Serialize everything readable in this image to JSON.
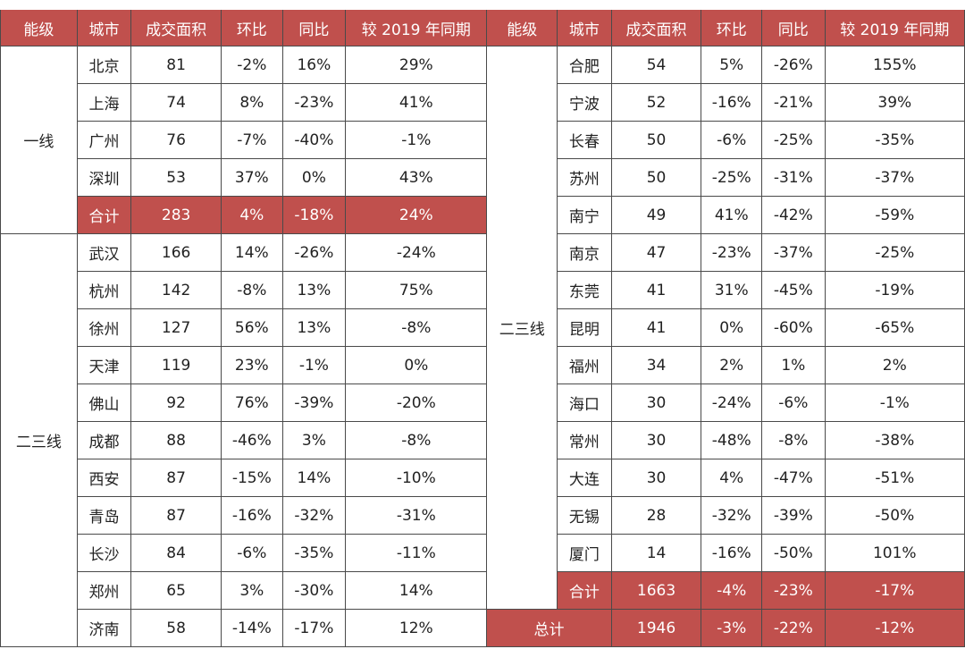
{
  "headers": [
    "能级",
    "城市",
    "成交面积",
    "环比",
    "同比",
    "较 2019 年同期",
    "能级",
    "城市",
    "成交面积",
    "环比",
    "同比",
    "较 2019 年同期"
  ],
  "left": {
    "groups": [
      {
        "tier": "一线",
        "rows": [
          {
            "city": "北京",
            "area": "81",
            "mom": "-2%",
            "yoy": "16%",
            "vs2019": "29%"
          },
          {
            "city": "上海",
            "area": "74",
            "mom": "8%",
            "yoy": "-23%",
            "vs2019": "41%"
          },
          {
            "city": "广州",
            "area": "76",
            "mom": "-7%",
            "yoy": "-40%",
            "vs2019": "-1%"
          },
          {
            "city": "深圳",
            "area": "53",
            "mom": "37%",
            "yoy": "0%",
            "vs2019": "43%"
          },
          {
            "city": "合计",
            "area": "283",
            "mom": "4%",
            "yoy": "-18%",
            "vs2019": "24%"
          }
        ]
      },
      {
        "tier": "二三线",
        "rows": [
          {
            "city": "武汉",
            "area": "166",
            "mom": "14%",
            "yoy": "-26%",
            "vs2019": "-24%"
          },
          {
            "city": "杭州",
            "area": "142",
            "mom": "-8%",
            "yoy": "13%",
            "vs2019": "75%"
          },
          {
            "city": "徐州",
            "area": "127",
            "mom": "56%",
            "yoy": "13%",
            "vs2019": "-8%"
          },
          {
            "city": "天津",
            "area": "119",
            "mom": "23%",
            "yoy": "-1%",
            "vs2019": "0%"
          },
          {
            "city": "佛山",
            "area": "92",
            "mom": "76%",
            "yoy": "-39%",
            "vs2019": "-20%"
          },
          {
            "city": "成都",
            "area": "88",
            "mom": "-46%",
            "yoy": "3%",
            "vs2019": "-8%"
          },
          {
            "city": "西安",
            "area": "87",
            "mom": "-15%",
            "yoy": "14%",
            "vs2019": "-10%"
          },
          {
            "city": "青岛",
            "area": "87",
            "mom": "-16%",
            "yoy": "-32%",
            "vs2019": "-31%"
          },
          {
            "city": "长沙",
            "area": "84",
            "mom": "-6%",
            "yoy": "-35%",
            "vs2019": "-11%"
          },
          {
            "city": "郑州",
            "area": "65",
            "mom": "3%",
            "yoy": "-30%",
            "vs2019": "14%"
          },
          {
            "city": "济南",
            "area": "58",
            "mom": "-14%",
            "yoy": "-17%",
            "vs2019": "12%"
          }
        ]
      }
    ]
  },
  "right": {
    "tier": "二三线",
    "rows": [
      {
        "city": "合肥",
        "area": "54",
        "mom": "5%",
        "yoy": "-26%",
        "vs2019": "155%"
      },
      {
        "city": "宁波",
        "area": "52",
        "mom": "-16%",
        "yoy": "-21%",
        "vs2019": "39%"
      },
      {
        "city": "长春",
        "area": "50",
        "mom": "-6%",
        "yoy": "-25%",
        "vs2019": "-35%"
      },
      {
        "city": "苏州",
        "area": "50",
        "mom": "-25%",
        "yoy": "-31%",
        "vs2019": "-37%"
      },
      {
        "city": "南宁",
        "area": "49",
        "mom": "41%",
        "yoy": "-42%",
        "vs2019": "-59%"
      },
      {
        "city": "南京",
        "area": "47",
        "mom": "-23%",
        "yoy": "-37%",
        "vs2019": "-25%"
      },
      {
        "city": "东莞",
        "area": "41",
        "mom": "31%",
        "yoy": "-45%",
        "vs2019": "-19%"
      },
      {
        "city": "昆明",
        "area": "41",
        "mom": "0%",
        "yoy": "-60%",
        "vs2019": "-65%"
      },
      {
        "city": "福州",
        "area": "34",
        "mom": "2%",
        "yoy": "1%",
        "vs2019": "2%"
      },
      {
        "city": "海口",
        "area": "30",
        "mom": "-24%",
        "yoy": "-6%",
        "vs2019": "-1%"
      },
      {
        "city": "常州",
        "area": "30",
        "mom": "-48%",
        "yoy": "-8%",
        "vs2019": "-38%"
      },
      {
        "city": "大连",
        "area": "30",
        "mom": "4%",
        "yoy": "-47%",
        "vs2019": "-51%"
      },
      {
        "city": "无锡",
        "area": "28",
        "mom": "-32%",
        "yoy": "-39%",
        "vs2019": "-50%"
      },
      {
        "city": "厦门",
        "area": "14",
        "mom": "-16%",
        "yoy": "-50%",
        "vs2019": "101%"
      },
      {
        "city": "合计",
        "area": "1663",
        "mom": "-4%",
        "yoy": "-23%",
        "vs2019": "-17%"
      }
    ],
    "total": {
      "label": "总计",
      "area": "1946",
      "mom": "-3%",
      "yoy": "-22%",
      "vs2019": "-12%"
    }
  },
  "colors": {
    "accent": "#c0504d",
    "header_text": "#ffffff",
    "border": "#4a4a4a"
  }
}
